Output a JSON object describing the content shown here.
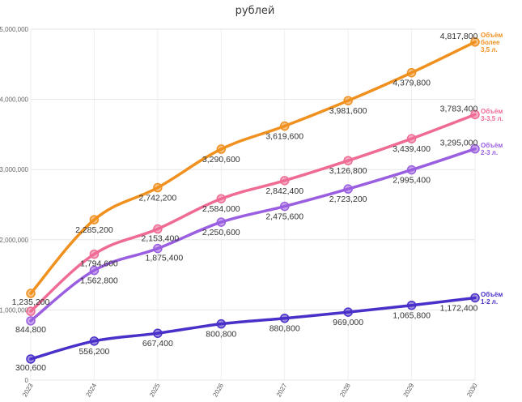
{
  "chart_data": {
    "type": "line",
    "title": "рублей",
    "xlabel": "",
    "ylabel": "",
    "categories": [
      "2023",
      "2024",
      "2025",
      "2026",
      "2027",
      "2028",
      "2029",
      "2030"
    ],
    "ylim": [
      0,
      5000000
    ],
    "yticks": [
      {
        "value": 0,
        "label": "0"
      },
      {
        "value": 1000000,
        "label": "1,000,000"
      },
      {
        "value": 2000000,
        "label": "2,000,000"
      },
      {
        "value": 3000000,
        "label": "3,000,000"
      },
      {
        "value": 4000000,
        "label": "4,000,000"
      },
      {
        "value": 5000000,
        "label": "5,000,000"
      }
    ],
    "grid": true,
    "legend": "right",
    "series": [
      {
        "name": "Объём более 3,5 л.",
        "legend_lines": [
          "Объём",
          "более",
          "3,5 л."
        ],
        "color": "#f0901e",
        "values": [
          1235200,
          2285200,
          2742200,
          3290600,
          3619600,
          3981600,
          4379800,
          4817800
        ],
        "labels": [
          "1,235,200",
          "2,285,200",
          "2,742,200",
          "3,290,600",
          "3,619,600",
          "3,981,600",
          "4,379,800",
          "4,817,800"
        ]
      },
      {
        "name": "Объём 3-3,5 л.",
        "legend_lines": [
          "Объём",
          "3-3,5 л."
        ],
        "color": "#ef6b94",
        "values": [
          980000,
          1794600,
          2153400,
          2584000,
          2842400,
          3126800,
          3439400,
          3783400
        ],
        "labels": [
          "",
          "1,794,600",
          "2,153,400",
          "2,584,000",
          "2,842,400",
          "3,126,800",
          "3,439,400",
          "3,783,400"
        ]
      },
      {
        "name": "Объём 2-3 л.",
        "legend_lines": [
          "Объём",
          "2-3 л."
        ],
        "color": "#9a5ee0",
        "values": [
          844800,
          1562800,
          1875400,
          2250600,
          2475600,
          2723200,
          2995400,
          3295000
        ],
        "labels": [
          "844,800",
          "1,562,800",
          "1,875,400",
          "2,250,600",
          "2,475,600",
          "2,723,200",
          "2,995,400",
          "3,295,000"
        ]
      },
      {
        "name": "Объём 1-2 л.",
        "legend_lines": [
          "Объём",
          "1-2 л."
        ],
        "color": "#4b2fc9",
        "values": [
          300600,
          556200,
          667400,
          800800,
          880800,
          969000,
          1065800,
          1172400
        ],
        "labels": [
          "300,600",
          "556,200",
          "667,400",
          "800,800",
          "880,800",
          "969,000",
          "1,065,800",
          "1,172,400"
        ]
      }
    ]
  }
}
